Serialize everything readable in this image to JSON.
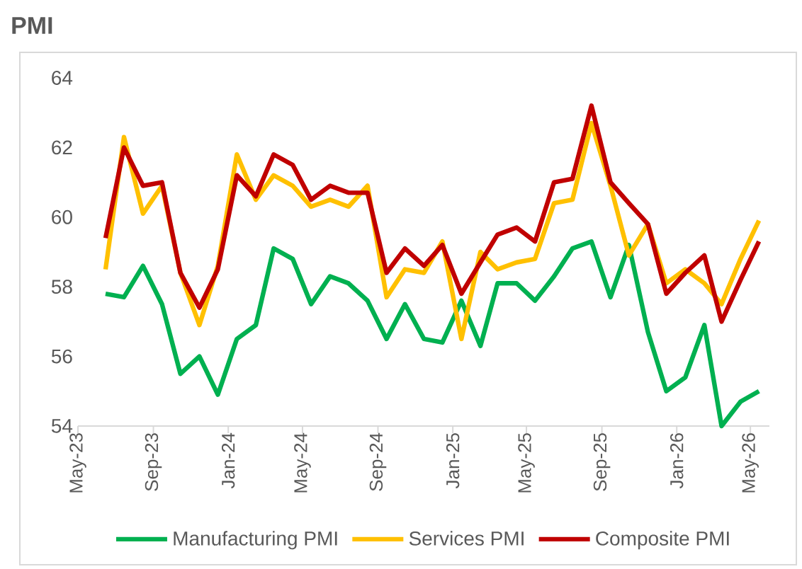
{
  "chart_data": {
    "type": "line",
    "title": "PMI",
    "x": [
      "2023-06-15",
      "2023-07-15",
      "2023-08-15",
      "2023-09-15",
      "2023-10-15",
      "2023-11-15",
      "2023-12-15",
      "2024-01-15",
      "2024-02-15",
      "2024-03-15",
      "2024-04-15",
      "2024-05-15",
      "2024-06-15",
      "2024-07-15",
      "2024-08-15",
      "2024-09-15",
      "2024-10-15",
      "2024-11-15",
      "2024-12-15",
      "2025-01-15",
      "2025-02-15",
      "2025-03-15",
      "2025-04-15",
      "2025-05-15",
      "2025-06-15",
      "2025-07-15",
      "2025-08-15",
      "2025-09-15",
      "2025-10-15",
      "2025-11-15",
      "2025-12-15",
      "2026-01-15",
      "2026-02-15",
      "2026-03-15",
      "2026-04-15",
      "2026-05-15"
    ],
    "series": [
      {
        "name": "Manufacturing PMI",
        "color": "#00b050",
        "values": [
          57.8,
          57.7,
          58.6,
          57.5,
          55.5,
          56.0,
          54.9,
          56.5,
          56.9,
          59.1,
          58.8,
          57.5,
          58.3,
          58.1,
          57.6,
          56.5,
          57.5,
          56.5,
          56.4,
          57.6,
          56.3,
          58.1,
          58.1,
          57.6,
          58.3,
          59.1,
          59.3,
          57.7,
          59.2,
          56.7,
          55.0,
          55.4,
          56.9,
          54.0,
          54.7,
          55.0
        ]
      },
      {
        "name": "Services PMI",
        "color": "#ffc000",
        "values": [
          58.5,
          62.3,
          60.1,
          60.9,
          58.4,
          56.9,
          58.6,
          61.8,
          60.5,
          61.2,
          60.9,
          60.3,
          60.5,
          60.3,
          60.9,
          57.7,
          58.5,
          58.4,
          59.3,
          56.5,
          59.0,
          58.5,
          58.7,
          58.8,
          60.4,
          60.5,
          62.7,
          60.9,
          58.9,
          59.8,
          58.1,
          58.5,
          58.1,
          57.5,
          58.8,
          59.9
        ]
      },
      {
        "name": "Composite PMI",
        "color": "#c00000",
        "values": [
          59.4,
          62.0,
          60.9,
          61.0,
          58.4,
          57.4,
          58.5,
          61.2,
          60.6,
          61.8,
          61.5,
          60.5,
          60.9,
          60.7,
          60.7,
          58.4,
          59.1,
          58.6,
          59.2,
          57.8,
          58.7,
          59.5,
          59.7,
          59.3,
          61.0,
          61.1,
          63.2,
          61.0,
          60.4,
          59.8,
          57.8,
          58.4,
          58.9,
          57.0,
          58.2,
          59.3
        ]
      }
    ],
    "xlim": [
      "2023-05-01",
      "2026-06-01"
    ],
    "xticks": [
      {
        "value": "2023-05-01",
        "label": "May-23"
      },
      {
        "value": "2023-09-01",
        "label": "Sep-23"
      },
      {
        "value": "2024-01-01",
        "label": "Jan-24"
      },
      {
        "value": "2024-05-01",
        "label": "May-24"
      },
      {
        "value": "2024-09-01",
        "label": "Sep-24"
      },
      {
        "value": "2025-01-01",
        "label": "Jan-25"
      },
      {
        "value": "2025-05-01",
        "label": "May-25"
      },
      {
        "value": "2025-09-01",
        "label": "Sep-25"
      },
      {
        "value": "2026-01-01",
        "label": "Jan-26"
      },
      {
        "value": "2026-05-01",
        "label": "May-26"
      }
    ],
    "ylim": [
      54,
      64
    ],
    "yticks": [
      54,
      56,
      58,
      60,
      62,
      64
    ],
    "grid": false,
    "legend": "bottom",
    "marker": "none",
    "line_style": "solid"
  }
}
